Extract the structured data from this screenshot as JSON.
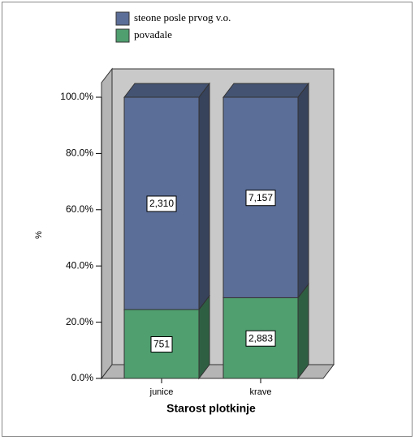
{
  "chart_data": {
    "type": "bar3d_stacked",
    "xlabel": "Starost plotkinje",
    "ylabel": "%",
    "categories": [
      "junice",
      "krave"
    ],
    "series": [
      {
        "name": "steone posle prvog v.o.",
        "color": "#5b6e98",
        "values": [
          75.5,
          71.3
        ],
        "counts": [
          "2,310",
          "7,157"
        ]
      },
      {
        "name": "povađale",
        "color": "#4f9f6f",
        "values": [
          24.5,
          28.7
        ],
        "counts": [
          "751",
          "2,883"
        ]
      }
    ],
    "ylim": [
      0,
      100
    ],
    "yticks": [
      {
        "value": 0,
        "label": "0.0%"
      },
      {
        "value": 20,
        "label": "20.0%"
      },
      {
        "value": 40,
        "label": "40.0%"
      },
      {
        "value": 60,
        "label": "60.0%"
      },
      {
        "value": 80,
        "label": "80.0%"
      },
      {
        "value": 100,
        "label": "100.0%"
      }
    ]
  }
}
